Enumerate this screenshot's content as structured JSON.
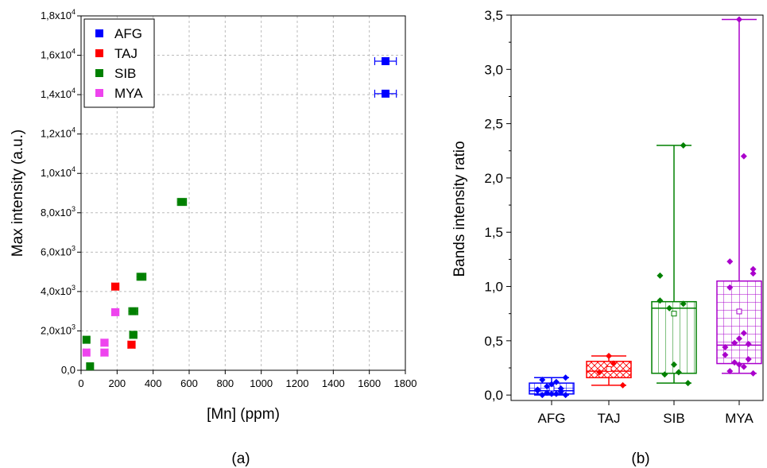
{
  "chart_data": [
    {
      "panel_label": "(a)",
      "type": "scatter",
      "xlabel": "[Mn] (ppm)",
      "ylabel": "Max intensity (a.u.)",
      "xlim": [
        0,
        1800
      ],
      "ylim": [
        0,
        18000
      ],
      "x_ticks": [
        "0",
        "200",
        "400",
        "600",
        "800",
        "1000",
        "1200",
        "1400",
        "1600",
        "1800"
      ],
      "y_ticks": [
        {
          "mantissa": "0,0",
          "exp": ""
        },
        {
          "mantissa": "2,0x10",
          "exp": "3"
        },
        {
          "mantissa": "4,0x10",
          "exp": "3"
        },
        {
          "mantissa": "6,0x10",
          "exp": "3"
        },
        {
          "mantissa": "8,0x10",
          "exp": "3"
        },
        {
          "mantissa": "1,0x10",
          "exp": "4"
        },
        {
          "mantissa": "1,2x10",
          "exp": "4"
        },
        {
          "mantissa": "1,4x10",
          "exp": "4"
        },
        {
          "mantissa": "1,6x10",
          "exp": "4"
        },
        {
          "mantissa": "1,8x10",
          "exp": "4"
        }
      ],
      "grid": true,
      "legend_position": "top-left",
      "series": [
        {
          "name": "AFG",
          "color": "#0000ff",
          "points": [
            {
              "x": 1690,
              "y": 15700,
              "xerr": 60
            },
            {
              "x": 1690,
              "y": 14050,
              "xerr": 60
            }
          ]
        },
        {
          "name": "TAJ",
          "color": "#ff0000",
          "points": [
            {
              "x": 190,
              "y": 4250,
              "xerr": 20
            },
            {
              "x": 280,
              "y": 1300,
              "xerr": 20
            }
          ]
        },
        {
          "name": "SIB",
          "color": "#008000",
          "points": [
            {
              "x": 560,
              "y": 8550,
              "xerr": 25
            },
            {
              "x": 335,
              "y": 4750,
              "xerr": 25
            },
            {
              "x": 290,
              "y": 3000,
              "xerr": 25
            },
            {
              "x": 290,
              "y": 1800,
              "xerr": 20
            },
            {
              "x": 30,
              "y": 1550,
              "xerr": 15
            },
            {
              "x": 50,
              "y": 200,
              "xerr": 15
            }
          ]
        },
        {
          "name": "MYA",
          "color": "#ee44ee",
          "points": [
            {
              "x": 190,
              "y": 2950,
              "xerr": 20
            },
            {
              "x": 130,
              "y": 1400,
              "xerr": 20
            },
            {
              "x": 130,
              "y": 900,
              "xerr": 20
            },
            {
              "x": 30,
              "y": 900,
              "xerr": 15
            }
          ]
        }
      ]
    },
    {
      "panel_label": "(b)",
      "type": "box",
      "ylabel": "Bands intensity ratio",
      "ylim": [
        -0.05,
        3.5
      ],
      "y_ticks": [
        "0,0",
        "0,5",
        "1,0",
        "1,5",
        "2,0",
        "2,5",
        "3,0",
        "3,5"
      ],
      "categories": [
        "AFG",
        "TAJ",
        "SIB",
        "MYA"
      ],
      "boxes": [
        {
          "category": "AFG",
          "color": "#0000ff",
          "pattern": "grid",
          "min": 0.0,
          "q1": 0.01,
          "median": 0.04,
          "mean": 0.06,
          "q3": 0.11,
          "max": 0.16,
          "points": [
            0.0,
            0.0,
            0.01,
            0.01,
            0.02,
            0.03,
            0.04,
            0.05,
            0.06,
            0.08,
            0.1,
            0.12,
            0.14,
            0.16
          ]
        },
        {
          "category": "TAJ",
          "color": "#ff0000",
          "pattern": "crosshatch",
          "min": 0.09,
          "q1": 0.16,
          "median": 0.22,
          "mean": 0.24,
          "q3": 0.31,
          "max": 0.36,
          "points": [
            0.09,
            0.21,
            0.29,
            0.36
          ]
        },
        {
          "category": "SIB",
          "color": "#008000",
          "pattern": "vertical",
          "min": 0.11,
          "q1": 0.2,
          "median": 0.8,
          "mean": 0.75,
          "q3": 0.86,
          "max": 2.3,
          "points": [
            0.11,
            0.19,
            0.21,
            0.28,
            0.8,
            0.84,
            0.87,
            1.1,
            2.3
          ]
        },
        {
          "category": "MYA",
          "color": "#aa00cc",
          "pattern": "grid",
          "min": 0.2,
          "q1": 0.29,
          "median": 0.46,
          "mean": 0.77,
          "q3": 1.05,
          "max": 3.46,
          "points": [
            0.2,
            0.22,
            0.26,
            0.28,
            0.3,
            0.33,
            0.37,
            0.44,
            0.47,
            0.48,
            0.52,
            0.57,
            0.99,
            1.12,
            1.16,
            1.23,
            2.2,
            3.46
          ]
        }
      ]
    }
  ]
}
